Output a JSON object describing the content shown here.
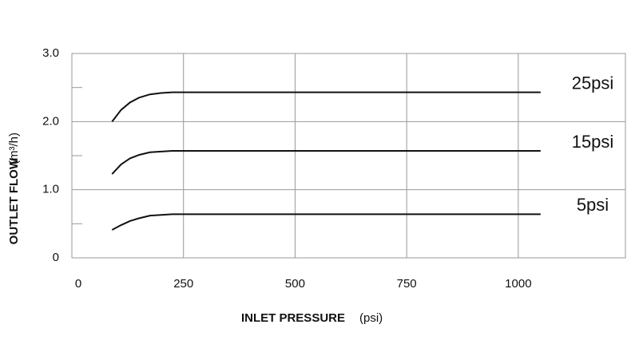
{
  "chart_data": {
    "type": "line",
    "y_label": "OUTLET FLOW",
    "y_unit": "(m³/h)",
    "x_label": "INLET PRESSURE",
    "x_unit": "(psi)",
    "x": [
      90,
      110,
      130,
      150,
      175,
      200,
      225,
      250,
      1050
    ],
    "series": [
      {
        "name": "25psi",
        "color": "#111111",
        "values": [
          2.0,
          2.17,
          2.28,
          2.35,
          2.4,
          2.42,
          2.43,
          2.43,
          2.43
        ]
      },
      {
        "name": "15psi",
        "color": "#111111",
        "values": [
          1.23,
          1.37,
          1.46,
          1.51,
          1.55,
          1.56,
          1.57,
          1.57,
          1.57
        ]
      },
      {
        "name": "5psi",
        "color": "#111111",
        "values": [
          0.41,
          0.48,
          0.54,
          0.58,
          0.62,
          0.63,
          0.64,
          0.64,
          0.64
        ]
      }
    ],
    "xlim": [
      0,
      1240
    ],
    "ylim": [
      0,
      3
    ],
    "xticks": [
      0,
      250,
      500,
      750,
      1000
    ],
    "yticks": [
      0,
      {
        "value": 1,
        "label": "1.0"
      },
      {
        "value": 2,
        "label": "2.0"
      },
      {
        "value": 3,
        "label": "3.0"
      }
    ],
    "minor_yticks": [
      0.5,
      1.5,
      2.5
    ],
    "grid": true
  }
}
